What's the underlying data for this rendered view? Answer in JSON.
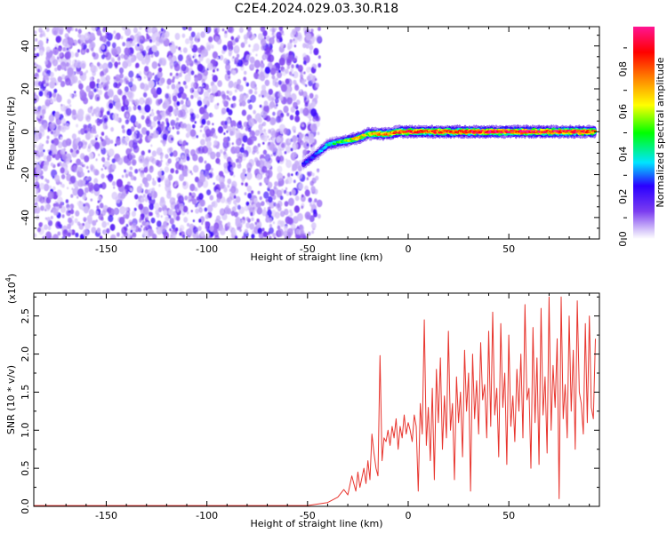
{
  "title": "C2E4.2024.029.03.30.R18",
  "chart_data": [
    {
      "type": "heatmap",
      "title": "C2E4.2024.029.03.30.R18",
      "xlabel": "Height of straight line (km)",
      "ylabel": "Frequency (Hz)",
      "xlim": [
        -186,
        95
      ],
      "ylim": [
        -50,
        49
      ],
      "xticks": [
        -150,
        -100,
        -50,
        0,
        50
      ],
      "yticks": [
        -40,
        -20,
        0,
        20,
        40
      ],
      "colorbar": {
        "label": "Normalized spectral amplitude",
        "ticks": [
          0.0,
          0.2,
          0.4,
          0.6,
          0.8
        ],
        "range": [
          0,
          1
        ],
        "colormap": [
          "#ffffff",
          "#9a6cf0",
          "#2a00ff",
          "#00e5ff",
          "#00ff00",
          "#ffff00",
          "#ff8000",
          "#ff0000",
          "#ff1493"
        ]
      },
      "noise_region_x": [
        -186,
        -46
      ],
      "ridge": {
        "x": [
          -52,
          -45,
          -40,
          -35,
          -30,
          -25,
          -20,
          -15,
          -10,
          -5,
          0,
          10,
          20,
          30,
          40,
          50,
          60,
          70,
          80,
          93
        ],
        "frequency": [
          -15,
          -10,
          -6,
          -5,
          -4,
          -3,
          -1,
          -1,
          -1,
          0,
          0,
          0,
          0,
          0,
          0,
          0,
          0,
          0,
          0,
          0
        ],
        "amplitude": [
          0.25,
          0.3,
          0.4,
          0.5,
          0.6,
          0.75,
          0.65,
          0.8,
          0.8,
          0.85,
          0.9,
          0.85,
          0.9,
          0.9,
          0.95,
          0.95,
          0.95,
          0.95,
          0.95,
          0.9
        ]
      },
      "grid": false
    },
    {
      "type": "line",
      "xlabel": "Height of straight line (km)",
      "ylabel": "SNR (10 * v/v)",
      "y_multiplier": "(x10^4)",
      "xlim": [
        -186,
        95
      ],
      "ylim": [
        0,
        2.8
      ],
      "xticks": [
        -150,
        -100,
        -50,
        0,
        50
      ],
      "yticks": [
        0.0,
        0.5,
        1.0,
        1.5,
        2.0,
        2.5
      ],
      "color": "#e8352e",
      "series": [
        {
          "x": [
            -186,
            -50,
            -40,
            -35,
            -32,
            -30,
            -28,
            -26,
            -25,
            -24,
            -22,
            -21,
            -20,
            -19,
            -18,
            -17,
            -16,
            -15,
            -14,
            -13,
            -12,
            -11,
            -10,
            -9,
            -8,
            -7,
            -6,
            -5,
            -4,
            -3,
            -2,
            -1,
            0,
            1,
            2,
            3,
            4,
            5,
            6,
            7,
            8,
            9,
            10,
            11,
            12,
            13,
            14,
            15,
            16,
            17,
            18,
            19,
            20,
            21,
            22,
            23,
            24,
            25,
            26,
            27,
            28,
            29,
            30,
            31,
            32,
            33,
            34,
            35,
            36,
            37,
            38,
            39,
            40,
            41,
            42,
            43,
            44,
            45,
            46,
            47,
            48,
            49,
            50,
            51,
            52,
            53,
            54,
            55,
            56,
            57,
            58,
            59,
            60,
            61,
            62,
            63,
            64,
            65,
            66,
            67,
            68,
            69,
            70,
            71,
            72,
            73,
            74,
            75,
            76,
            77,
            78,
            79,
            80,
            81,
            82,
            83,
            84,
            85,
            86,
            87,
            88,
            89,
            90,
            91,
            92,
            93
          ],
          "y": [
            0.01,
            0.01,
            0.05,
            0.12,
            0.22,
            0.15,
            0.4,
            0.2,
            0.45,
            0.25,
            0.5,
            0.3,
            0.6,
            0.35,
            0.95,
            0.7,
            0.5,
            0.4,
            1.98,
            0.6,
            0.9,
            0.85,
            1.0,
            0.8,
            1.05,
            0.9,
            1.15,
            0.75,
            1.05,
            0.9,
            1.2,
            0.95,
            1.1,
            1.0,
            0.85,
            1.2,
            1.05,
            0.2,
            1.35,
            0.95,
            2.45,
            0.8,
            1.3,
            0.6,
            1.55,
            0.35,
            1.8,
            1.1,
            1.95,
            0.75,
            1.45,
            0.9,
            2.3,
            1.0,
            1.35,
            0.35,
            1.7,
            1.1,
            1.5,
            0.65,
            2.05,
            1.25,
            1.75,
            0.2,
            2.0,
            1.15,
            1.65,
            0.95,
            2.15,
            1.4,
            1.6,
            0.9,
            2.3,
            1.05,
            2.55,
            1.2,
            1.55,
            0.65,
            2.4,
            1.3,
            1.75,
            0.55,
            2.25,
            1.05,
            1.45,
            0.85,
            1.8,
            1.25,
            2.0,
            0.9,
            2.65,
            1.4,
            1.55,
            0.5,
            2.35,
            1.1,
            1.95,
            0.55,
            2.6,
            1.2,
            1.7,
            0.7,
            2.75,
            1.0,
            1.85,
            1.3,
            2.2,
            0.1,
            2.75,
            1.15,
            1.6,
            0.9,
            2.5,
            1.25,
            2.05,
            0.75,
            2.7,
            1.5,
            1.35,
            0.95,
            2.4,
            1.1,
            2.5,
            1.3,
            1.15,
            2.2
          ]
        }
      ]
    }
  ]
}
